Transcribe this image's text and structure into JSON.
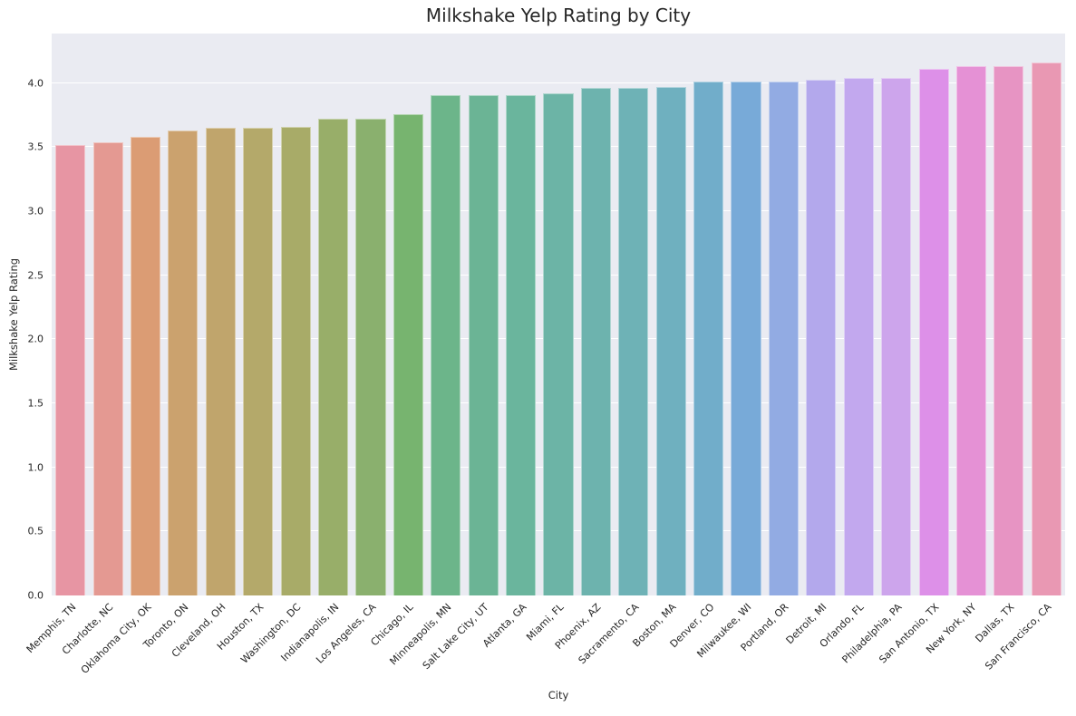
{
  "chart_data": {
    "type": "bar",
    "title": "Milkshake Yelp Rating by City",
    "xlabel": "City",
    "ylabel": "Milkshake Yelp Rating",
    "ylim": [
      0,
      4.388
    ],
    "ytick_values": [
      0.0,
      0.5,
      1.0,
      1.5,
      2.0,
      2.5,
      3.0,
      3.5,
      4.0
    ],
    "ytick_labels": [
      "0.0",
      "0.5",
      "1.0",
      "1.5",
      "2.0",
      "2.5",
      "3.0",
      "3.5",
      "4.0"
    ],
    "grid": "horizontal",
    "legend_position": "none",
    "categories": [
      "Memphis, TN",
      "Charlotte, NC",
      "Oklahoma City, OK",
      "Toronto, ON",
      "Cleveland, OH",
      "Houston, TX",
      "Washington, DC",
      "Indianapolis, IN",
      "Los Angeles, CA",
      "Chicago, IL",
      "Minneapolis, MN",
      "Salt Lake City, UT",
      "Atlanta, GA",
      "Miami, FL",
      "Phoenix, AZ",
      "Sacramento, CA",
      "Boston, MA",
      "Denver, CO",
      "Milwaukee, WI",
      "Portland, OR",
      "Detroit, MI",
      "Orlando, FL",
      "Philadelphia, PA",
      "San Antonio, TX",
      "New York, NY",
      "Dallas, TX",
      "San Francisco, CA"
    ],
    "values": [
      3.52,
      3.54,
      3.58,
      3.63,
      3.65,
      3.65,
      3.66,
      3.72,
      3.72,
      3.76,
      3.91,
      3.91,
      3.91,
      3.92,
      3.96,
      3.96,
      3.97,
      4.01,
      4.01,
      4.01,
      4.03,
      4.04,
      4.04,
      4.11,
      4.13,
      4.13,
      4.16
    ],
    "bar_colors": [
      "#e795a3",
      "#e49992",
      "#db9c74",
      "#cba26e",
      "#c0a56c",
      "#b4a96a",
      "#a8ab68",
      "#98ae69",
      "#8ab06e",
      "#77b46f",
      "#6cb58a",
      "#6bb495",
      "#6ab59d",
      "#6cb4a6",
      "#6db3ae",
      "#6eb2b6",
      "#6fb0bf",
      "#71adca",
      "#78aad8",
      "#92abe3",
      "#b3a8ec",
      "#c2a8ee",
      "#cda5ec",
      "#dd90e8",
      "#e591d5",
      "#e794c3",
      "#e998b3"
    ],
    "bar_width_fraction": 0.8
  },
  "style": {
    "figure_background": "#ffffff",
    "axes_background": "#eaebf2",
    "grid_color": "#ffffff",
    "text_color": "#262626"
  }
}
